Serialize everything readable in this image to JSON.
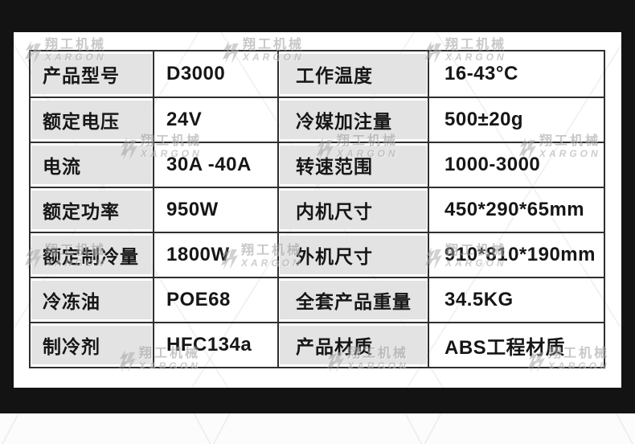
{
  "watermark": {
    "brand_cn": "翔工机械",
    "brand_en": "XARGON"
  },
  "table": {
    "rows": [
      [
        "产品型号",
        "D3000",
        "工作温度",
        "16-43°C"
      ],
      [
        "额定电压",
        "24V",
        "冷媒加注量",
        "500±20g"
      ],
      [
        "电流",
        "30A -40A",
        "转速范围",
        "1000-3000"
      ],
      [
        "额定功率",
        "950W",
        "内机尺寸",
        "450*290*65mm"
      ],
      [
        "额定制冷量",
        "1800W",
        "外机尺寸",
        "910*810*190mm"
      ],
      [
        "冷冻油",
        "POE68",
        "全套产品重量",
        "34.5KG"
      ],
      [
        "制冷剂",
        "HFC134a",
        "产品材质",
        "ABS工程材质"
      ]
    ]
  },
  "colors": {
    "frame": "#131313",
    "panel": "#ffffff",
    "label_cell_bg": "#e3e3e3",
    "table_border": "#2f2f2f",
    "text": "#161616",
    "watermark": "#9a9a9a"
  }
}
